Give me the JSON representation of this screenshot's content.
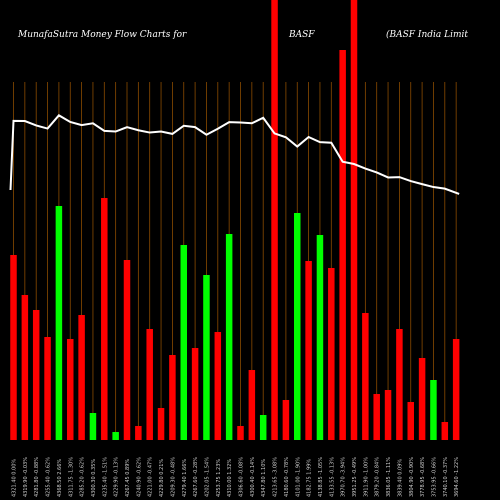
{
  "header": {
    "part1": "MunafaSutra  Money Flow  Charts for",
    "part2": "BASF",
    "part3": "(BASF India  Limit"
  },
  "colors": {
    "background": "#000000",
    "up": "#00ff00",
    "down": "#ff0000",
    "grid": "#8a4b00",
    "price_line": "#ffffff"
  },
  "chart_data": {
    "type": "bar",
    "title": "MunafaSutra  Money Flow  Charts for BASF (BASF India  Limit",
    "xlabel": "",
    "ylabel": "",
    "grid": true,
    "categories": [
      "4321.40  0.00%",
      "4319.90  -0.03%",
      "4281.80  -0.88%",
      "4255.40  -0.62%",
      "4368.50  2.66%",
      "4311.75  -1.30%",
      "4285.20  -0.62%",
      "4300.30  0.35%",
      "4235.40  -1.51%",
      "4229.90  -0.13%",
      "4267.45  0.89%",
      "4240.90  -0.62%",
      "4221.00  -0.47%",
      "4229.80  0.21%",
      "4209.30  -0.48%",
      "4279.40  1.66%",
      "4267.60  -0.28%",
      "4202.05  -1.54%",
      "4253.75  1.23%",
      "4310.00  1.32%",
      "4306.60  -0.08%",
      "4300.40  -0.14%",
      "4347.80  1.10%",
      "4213.65  -3.08%",
      "4180.60  -0.78%",
      "4101.00  -1.90%",
      "4182.75  1.99%",
      "4138.85  -1.05%",
      "4133.55  -0.13%",
      "3970.70  -3.94%",
      "3951.25  -0.49%",
      "3911.90  -1.00%",
      "3879.20  -0.84%",
      "3836.05  -1.11%",
      "3839.40  0.09%",
      "3804.90  -0.90%",
      "3778.95  -0.68%",
      "3753.95  -0.66%",
      "3740.10  -0.37%",
      "3694.60  -1.22%"
    ],
    "series": [
      {
        "flow": [
          "down",
          "down",
          "down",
          "down",
          "up",
          "down",
          "down",
          "up",
          "down",
          "up",
          "down",
          "down",
          "down",
          "down",
          "down",
          "up",
          "down",
          "up",
          "down",
          "up",
          "down",
          "down",
          "up",
          "down",
          "down",
          "up",
          "down",
          "up",
          "down",
          "down",
          "down",
          "down",
          "down",
          "down",
          "down",
          "down",
          "down",
          "up",
          "down",
          "down"
        ],
        "values": [
          185,
          145,
          130,
          103,
          234,
          101,
          125,
          27,
          242,
          8,
          180,
          14,
          111,
          32,
          85,
          195,
          92,
          165,
          108,
          206,
          14,
          70,
          25,
          455,
          40,
          227,
          179,
          205,
          172,
          390,
          445,
          127,
          46,
          50,
          111,
          38,
          82,
          60,
          18,
          101
        ],
        "price": [
          4321.4,
          4319.9,
          4281.8,
          4255.4,
          4368.5,
          4311.75,
          4285.2,
          4300.3,
          4235.4,
          4229.9,
          4267.45,
          4240.9,
          4221.0,
          4229.8,
          4209.3,
          4279.4,
          4267.6,
          4202.05,
          4253.75,
          4310.0,
          4306.6,
          4300.4,
          4347.8,
          4213.65,
          4180.6,
          4101.0,
          4182.75,
          4138.85,
          4133.55,
          3970.7,
          3951.25,
          3911.9,
          3879.2,
          3836.05,
          3839.4,
          3804.9,
          3778.95,
          3753.95,
          3740.1,
          3694.6
        ]
      }
    ]
  }
}
